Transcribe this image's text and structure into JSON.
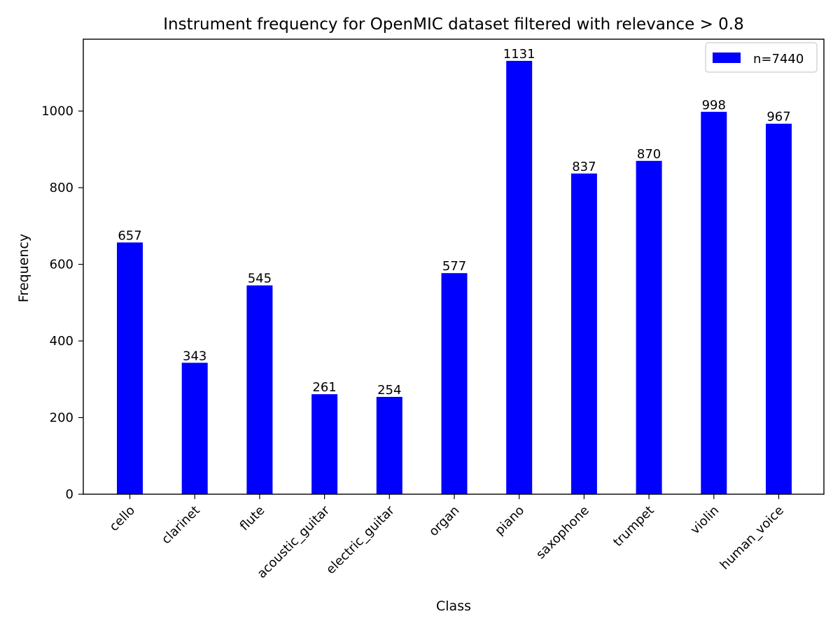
{
  "chart_data": {
    "type": "bar",
    "title": "Instrument frequency for OpenMIC dataset filtered with relevance > 0.8",
    "xlabel": "Class",
    "ylabel": "Frequency",
    "categories": [
      "cello",
      "clarinet",
      "flute",
      "acoustic_guitar",
      "electric_guitar",
      "organ",
      "piano",
      "saxophone",
      "trumpet",
      "violin",
      "human_voice"
    ],
    "series": [
      {
        "name": "n=7440",
        "values": [
          657,
          343,
          545,
          261,
          254,
          577,
          1131,
          837,
          870,
          998,
          967
        ],
        "color": "#0000ff"
      }
    ],
    "data_labels": [
      "657",
      "343",
      "545",
      "261",
      "254",
      "577",
      "1131",
      "837",
      "870",
      "998",
      "967"
    ],
    "ylim": [
      0,
      1187.55
    ],
    "yticks": [
      0,
      200,
      400,
      600,
      800,
      1000
    ],
    "ytick_labels": [
      "0",
      "200",
      "400",
      "600",
      "800",
      "1000"
    ],
    "grid": false,
    "legend": {
      "label": "n=7440",
      "placement": "top-right"
    },
    "xtick_rotation": 45
  }
}
